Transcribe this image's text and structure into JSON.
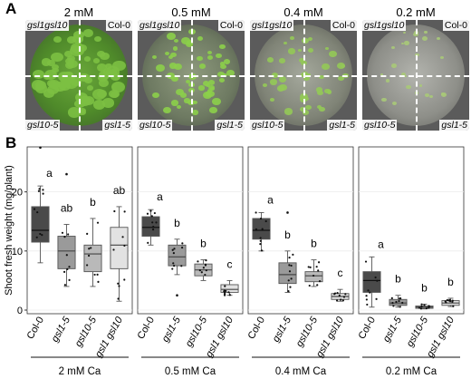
{
  "panel_a": {
    "letter": "A",
    "plates": [
      {
        "concentration": "2 mM",
        "top_left": "gsl1gsl10",
        "top_right": "Col-0",
        "bottom_left": "gsl10-5",
        "bottom_right": "gsl1-5",
        "growth": "heavy"
      },
      {
        "concentration": "0.5 mM",
        "top_left": "gsl1gsl10",
        "top_right": "Col-0",
        "bottom_left": "gsl10-5",
        "bottom_right": "gsl1-5",
        "growth": "medium"
      },
      {
        "concentration": "0.4 mM",
        "top_left": "gsl1gsl10",
        "top_right": "Col-0",
        "bottom_left": "gsl10-5",
        "bottom_right": "gsl1-5",
        "growth": "light"
      },
      {
        "concentration": "0.2 mM",
        "top_left": "gsl1gsl10",
        "top_right": "Col-0",
        "bottom_left": "gsl10-5",
        "bottom_right": "gsl1-5",
        "growth": "sparse"
      }
    ]
  },
  "panel_b": {
    "letter": "B",
    "ylabel": "Shoot fresh weight (mg/plant)",
    "colors": {
      "Col-0": "#4a4a4a",
      "gsl1-5": "#9a9a9a",
      "gsl10-5": "#b9b9b9",
      "gsl1 gsl10": "#e2e2e2"
    }
  },
  "chart_data": {
    "type": "box",
    "ylabel": "Shoot fresh weight (mg/plant)",
    "ylim": [
      0,
      27
    ],
    "yticks": [
      0,
      10,
      20
    ],
    "genotypes": [
      "Col-0",
      "gsl1-5",
      "gsl10-5",
      "gsl1 gsl10"
    ],
    "facets": [
      {
        "name": "2 mM Ca",
        "boxes": [
          {
            "genotype": "Col-0",
            "min": 8,
            "q1": 11.5,
            "median": 13.5,
            "q3": 17.5,
            "max": 21,
            "letter": "a",
            "outliers": [
              27.5
            ]
          },
          {
            "genotype": "gsl1-5",
            "min": 4,
            "q1": 7,
            "median": 10,
            "q3": 12.5,
            "max": 14.5,
            "letter": "ab",
            "outliers": [
              23
            ]
          },
          {
            "genotype": "gsl10-5",
            "min": 4,
            "q1": 6.5,
            "median": 9.5,
            "q3": 11,
            "max": 15.5,
            "letter": "b",
            "outliers": []
          },
          {
            "genotype": "gsl1 gsl10",
            "min": 1.5,
            "q1": 7,
            "median": 11,
            "q3": 14,
            "max": 17.5,
            "letter": "ab",
            "outliers": []
          }
        ]
      },
      {
        "name": "0.5 mM Ca",
        "boxes": [
          {
            "genotype": "Col-0",
            "min": 11,
            "q1": 12.5,
            "median": 14,
            "q3": 15.8,
            "max": 17,
            "letter": "a",
            "outliers": []
          },
          {
            "genotype": "gsl1-5",
            "min": 6,
            "q1": 7.5,
            "median": 9,
            "q3": 11,
            "max": 12,
            "letter": "b",
            "outliers": [
              2.5
            ]
          },
          {
            "genotype": "gsl10-5",
            "min": 5,
            "q1": 5.8,
            "median": 6.8,
            "q3": 7.8,
            "max": 8.5,
            "letter": "b",
            "outliers": []
          },
          {
            "genotype": "gsl1 gsl10",
            "min": 2.5,
            "q1": 3,
            "median": 3.5,
            "q3": 4.3,
            "max": 5,
            "letter": "c",
            "outliers": []
          }
        ]
      },
      {
        "name": "0.4 mM Ca",
        "boxes": [
          {
            "genotype": "Col-0",
            "min": 10,
            "q1": 12,
            "median": 13.5,
            "q3": 15.5,
            "max": 16.5,
            "letter": "a",
            "outliers": []
          },
          {
            "genotype": "gsl1-5",
            "min": 3,
            "q1": 4.5,
            "median": 6,
            "q3": 8,
            "max": 10,
            "letter": "b",
            "outliers": [
              16.5
            ]
          },
          {
            "genotype": "gsl10-5",
            "min": 4,
            "q1": 4.8,
            "median": 5.8,
            "q3": 6.5,
            "max": 8.5,
            "letter": "b",
            "outliers": []
          },
          {
            "genotype": "gsl1 gsl10",
            "min": 1.5,
            "q1": 1.8,
            "median": 2.3,
            "q3": 2.8,
            "max": 3.5,
            "letter": "c",
            "outliers": []
          }
        ]
      },
      {
        "name": "0.2 mM Ca",
        "boxes": [
          {
            "genotype": "Col-0",
            "min": 0.5,
            "q1": 3,
            "median": 5,
            "q3": 6.5,
            "max": 9,
            "letter": "a",
            "outliers": []
          },
          {
            "genotype": "gsl1-5",
            "min": 0.5,
            "q1": 0.8,
            "median": 1.2,
            "q3": 1.8,
            "max": 2.5,
            "letter": "b",
            "outliers": []
          },
          {
            "genotype": "gsl10-5",
            "min": 0.2,
            "q1": 0.3,
            "median": 0.5,
            "q3": 0.7,
            "max": 1,
            "letter": "b",
            "outliers": []
          },
          {
            "genotype": "gsl1 gsl10",
            "min": 0.6,
            "q1": 0.8,
            "median": 1.2,
            "q3": 1.6,
            "max": 2,
            "letter": "b",
            "outliers": []
          }
        ]
      }
    ]
  }
}
